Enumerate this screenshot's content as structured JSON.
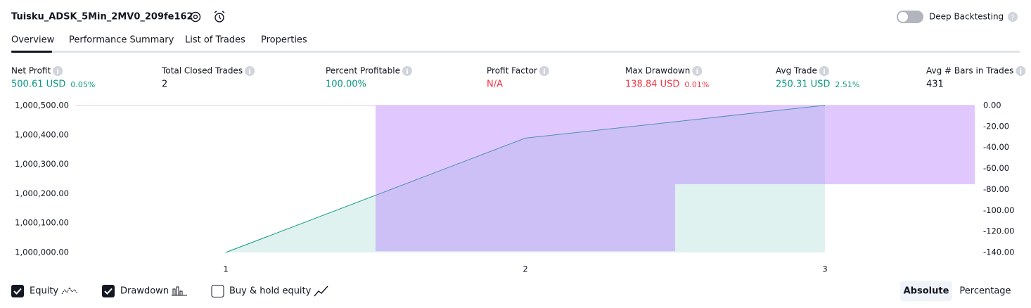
{
  "header": {
    "title": "Tuisku_ADSK_5Min_2MV0_209fe162",
    "deep_backtesting": "Deep Backtesting"
  },
  "tabs": [
    "Overview",
    "Performance Summary",
    "List of Trades",
    "Properties"
  ],
  "metrics": [
    {
      "label": "Net Profit",
      "value": "500.61 USD",
      "extra": "0.05%",
      "color": "#089981"
    },
    {
      "label": "Total Closed Trades",
      "value": "2",
      "color": "#131722"
    },
    {
      "label": "Percent Profitable",
      "value": "100.00%",
      "color": "#089981"
    },
    {
      "label": "Profit Factor",
      "value": "N/A",
      "color": "#f23645"
    },
    {
      "label": "Max Drawdown",
      "value": "138.84 USD",
      "extra": "0.01%",
      "color": "#f23645"
    },
    {
      "label": "Avg Trade",
      "value": "250.31 USD",
      "extra": "2.51%",
      "color": "#089981"
    },
    {
      "label": "Avg # Bars in Trades",
      "value": "431",
      "color": "#131722"
    }
  ],
  "chart_data": {
    "type": "line",
    "x": [
      1,
      2,
      3
    ],
    "xlim": [
      0.5,
      3.5
    ],
    "xticks": [
      1,
      2,
      3
    ],
    "series": [
      {
        "name": "Equity",
        "color": "#089981",
        "values": [
          1000000,
          1000389,
          1000500.61
        ]
      },
      {
        "name": "Drawdown",
        "color": "#b57bff",
        "axis": "y2",
        "values": [
          0,
          -138.84,
          -75
        ]
      }
    ],
    "ylim": [
      1000000,
      1000500
    ],
    "yticks": [
      {
        "value": 1000000,
        "label": "1,000,000.00"
      },
      {
        "value": 1000100,
        "label": "1,000,100.00"
      },
      {
        "value": 1000200,
        "label": "1,000,200.00"
      },
      {
        "value": 1000300,
        "label": "1,000,300.00"
      },
      {
        "value": 1000400,
        "label": "1,000,400.00"
      },
      {
        "value": 1000500,
        "label": "1,000,500.00"
      }
    ],
    "y2lim": [
      -140,
      0
    ],
    "y2ticks": [
      {
        "value": 0,
        "label": "0.00"
      },
      {
        "value": -20,
        "label": "-20.00"
      },
      {
        "value": -40,
        "label": "-40.00"
      },
      {
        "value": -60,
        "label": "-60.00"
      },
      {
        "value": -80,
        "label": "-80.00"
      },
      {
        "value": -100,
        "label": "-100.00"
      },
      {
        "value": -120,
        "label": "-120.00"
      },
      {
        "value": -140,
        "label": "-140.00"
      }
    ]
  },
  "controls": {
    "buy_hold": "Buy & hold equity",
    "absolute": "Absolute",
    "percentage": "Percentage"
  }
}
